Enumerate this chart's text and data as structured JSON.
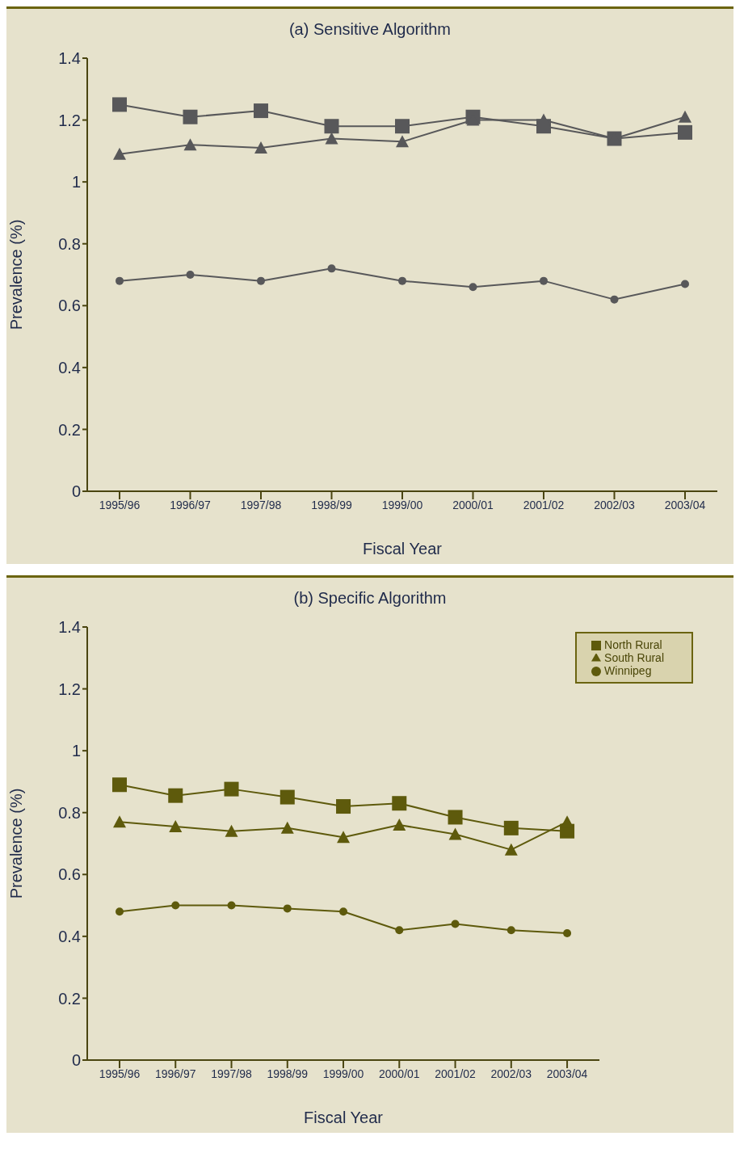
{
  "chart_data": [
    {
      "type": "line",
      "title": "(a) Sensitive Algorithm",
      "xlabel": "Fiscal Year",
      "ylabel": "Prevalence (%)",
      "categories": [
        "1995/96",
        "1996/97",
        "1997/98",
        "1998/99",
        "1999/00",
        "2000/01",
        "2001/02",
        "2002/03",
        "2003/04"
      ],
      "ylim": [
        0,
        1.4
      ],
      "yticks": [
        0,
        0.2,
        0.4,
        0.6,
        0.8,
        1,
        1.2,
        1.4
      ],
      "grid": false,
      "series": [
        {
          "color": "#58585a",
          "marker": "square",
          "values": [
            1.25,
            1.21,
            1.23,
            1.18,
            1.18,
            1.21,
            1.18,
            1.14,
            1.16
          ]
        },
        {
          "color": "#58585a",
          "marker": "triangle",
          "values": [
            1.09,
            1.12,
            1.11,
            1.14,
            1.13,
            1.2,
            1.2,
            1.14,
            1.21
          ]
        },
        {
          "color": "#58585a",
          "marker": "circle",
          "values": [
            0.68,
            0.7,
            0.68,
            0.72,
            0.68,
            0.66,
            0.68,
            0.62,
            0.67
          ]
        }
      ]
    },
    {
      "type": "line",
      "title": "(b) Specific Algorithm",
      "xlabel": "Fiscal Year",
      "ylabel": "Prevalence (%)",
      "categories": [
        "1995/96",
        "1996/97",
        "1997/98",
        "1998/99",
        "1999/00",
        "2000/01",
        "2001/02",
        "2002/03",
        "2003/04"
      ],
      "ylim": [
        0,
        1.4
      ],
      "yticks": [
        0,
        0.2,
        0.4,
        0.6,
        0.8,
        1,
        1.2,
        1.4
      ],
      "grid": false,
      "legend": "top right",
      "series": [
        {
          "name": "North Rural",
          "color": "#5e5a0c",
          "marker": "square",
          "values": [
            0.89,
            0.855,
            0.876,
            0.85,
            0.82,
            0.83,
            0.785,
            0.75,
            0.74
          ]
        },
        {
          "name": "South Rural",
          "color": "#5e5a0c",
          "marker": "triangle",
          "values": [
            0.77,
            0.755,
            0.74,
            0.75,
            0.72,
            0.76,
            0.73,
            0.68,
            0.77
          ]
        },
        {
          "name": "Winnipeg",
          "color": "#5e5a0c",
          "marker": "circle",
          "values": [
            0.48,
            0.5,
            0.5,
            0.49,
            0.48,
            0.42,
            0.44,
            0.42,
            0.41
          ]
        }
      ]
    }
  ]
}
